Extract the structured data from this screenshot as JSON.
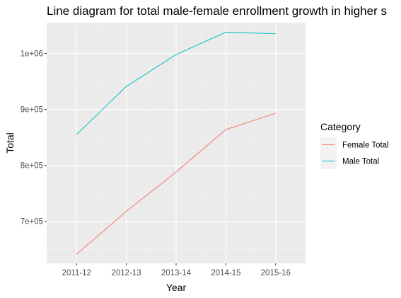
{
  "chart_data": {
    "type": "line",
    "title": "Line diagram for total male-female enrollment growth in higher s",
    "xlabel": "Year",
    "ylabel": "Total",
    "categories": [
      "2011-12",
      "2012-13",
      "2013-14",
      "2014-15",
      "2015-16"
    ],
    "y_ticks": [
      700000,
      800000,
      900000,
      1000000
    ],
    "y_tick_labels": [
      "7e+05",
      "8e+05",
      "9e+05",
      "1e+06"
    ],
    "ylim": [
      625000,
      1055000
    ],
    "grid": true,
    "legend_title": "Category",
    "legend_position": "right",
    "series": [
      {
        "name": "Female Total",
        "color": "#F8766D",
        "values": [
          641000,
          718000,
          788000,
          864000,
          893000
        ]
      },
      {
        "name": "Male Total",
        "color": "#00BFC4",
        "values": [
          855000,
          941000,
          998000,
          1038000,
          1035000
        ]
      }
    ]
  }
}
